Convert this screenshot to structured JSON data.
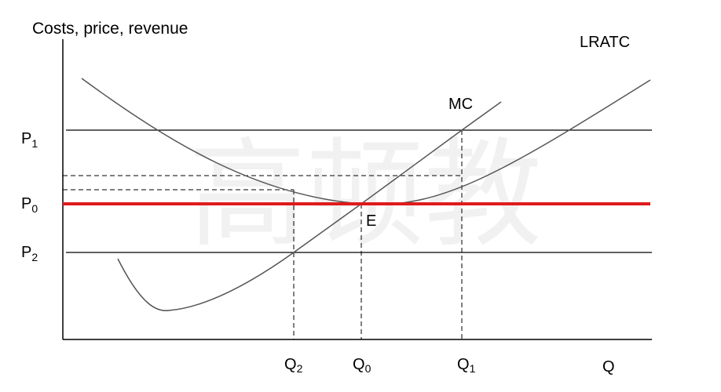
{
  "diagram": {
    "y_axis_title": "Costs, price, revenue",
    "x_axis_label": "Q",
    "curves": {
      "lratc": "LRATC",
      "mc": "MC"
    },
    "equilibrium_point": "E",
    "price_levels": [
      {
        "letter": "P",
        "subscript": "1"
      },
      {
        "letter": "P",
        "subscript": "0"
      },
      {
        "letter": "P",
        "subscript": "2"
      }
    ],
    "quantity_levels": [
      {
        "letter": "Q",
        "subscript": "2"
      },
      {
        "letter": "Q",
        "subscript": "0"
      },
      {
        "letter": "Q",
        "subscript": "1"
      }
    ],
    "watermark": "高顿教",
    "colors": {
      "price_line_p0": "#e01b1b",
      "lines": "#000000"
    }
  }
}
